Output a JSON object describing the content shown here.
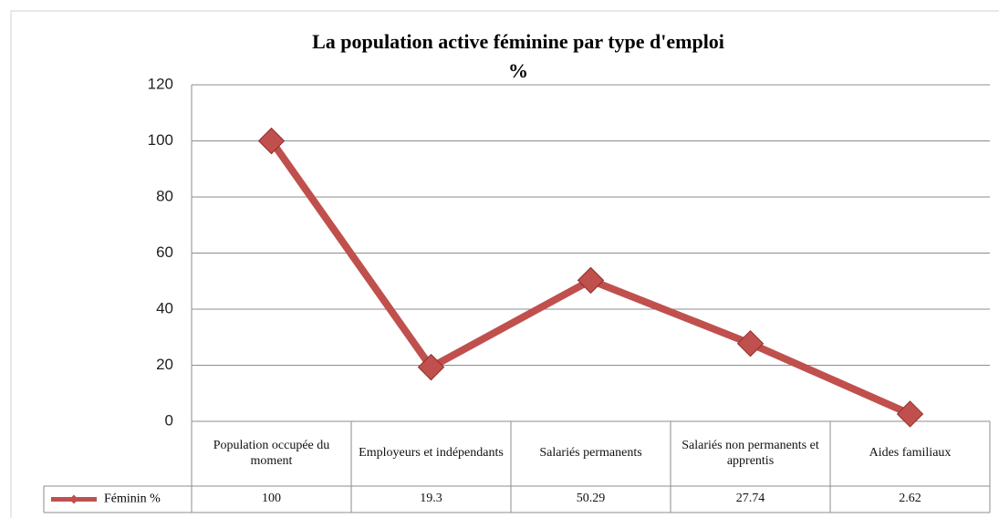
{
  "chart_data": {
    "type": "line",
    "title": [
      "La population active féminine par type d'emploi",
      "%"
    ],
    "categories": [
      "Population occupée du moment",
      "Employeurs et indépendants",
      "Salariés permanents",
      "Salariés non permanents et apprentis",
      "Aides familiaux"
    ],
    "series": [
      {
        "name": "Féminin %",
        "color": "#c0504d",
        "values": [
          100,
          19.3,
          50.29,
          27.74,
          2.62
        ]
      }
    ],
    "ylim": [
      0,
      120
    ],
    "yticks": [
      0,
      20,
      40,
      60,
      80,
      100,
      120
    ],
    "grid": true,
    "data_table": true
  }
}
